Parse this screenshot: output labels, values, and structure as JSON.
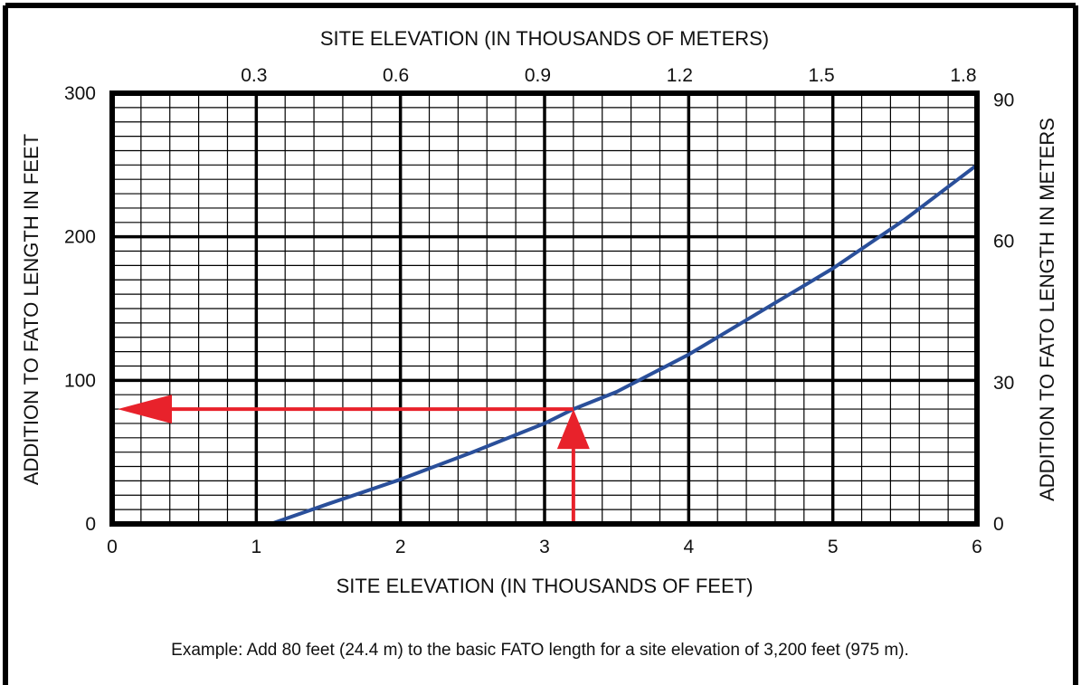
{
  "chart_data": {
    "type": "line",
    "top_axis_title": "SITE ELEVATION (IN THOUSANDS OF METERS)",
    "top_tick_labels": [
      "0.3",
      "0.6",
      "0.9",
      "1.2",
      "1.5",
      "1.8"
    ],
    "top_tick_values_km": [
      0.3,
      0.6,
      0.9,
      1.2,
      1.5,
      1.8
    ],
    "xlabel": "SITE ELEVATION (IN THOUSANDS OF FEET)",
    "x_tick_labels": [
      "0",
      "1",
      "2",
      "3",
      "4",
      "5",
      "6"
    ],
    "xlim": [
      0,
      6
    ],
    "ylabel": "ADDITION TO FATO LENGTH IN FEET",
    "y_tick_labels": [
      "0",
      "100",
      "200",
      "300"
    ],
    "ylim": [
      0,
      300
    ],
    "y2label": "ADDITION TO FATO LENGTH IN METERS",
    "y2_tick_labels": [
      "0",
      "30",
      "60",
      "90"
    ],
    "y2_tick_values": [
      0,
      30,
      60,
      90
    ],
    "grid": true,
    "series": [
      {
        "color": "#2a4f9a",
        "x": [
          1.1,
          1.5,
          2.0,
          2.5,
          3.0,
          3.2,
          3.5,
          4.0,
          4.5,
          5.0,
          5.5,
          6.0
        ],
        "y": [
          0,
          14,
          31,
          50,
          70,
          80,
          92,
          118,
          148,
          178,
          212,
          250
        ]
      }
    ],
    "example_path": {
      "color": "#e8222b",
      "x": 3.2,
      "y": 80
    },
    "note": "Example:  Add 80 feet (24.4 m) to the basic FATO length for a site elevation of 3,200 feet (975 m)."
  }
}
